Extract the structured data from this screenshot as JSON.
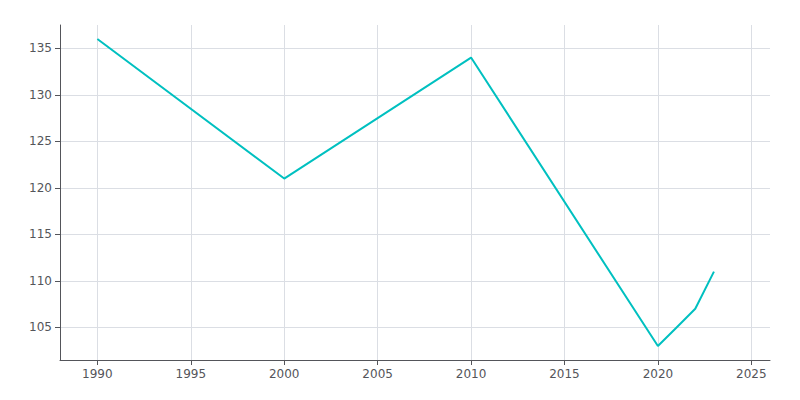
{
  "chart_data": {
    "type": "line",
    "x": [
      1990,
      2000,
      2010,
      2020,
      2021,
      2022,
      2023
    ],
    "values": [
      136,
      121,
      134,
      103,
      105,
      107,
      111
    ],
    "color": "#00c0c0",
    "xlim": [
      1988,
      2026
    ],
    "ylim": [
      101.5,
      137.5
    ],
    "xticks": [
      1990,
      1995,
      2000,
      2005,
      2010,
      2015,
      2020,
      2025
    ],
    "yticks": [
      105,
      110,
      115,
      120,
      125,
      130,
      135
    ],
    "grid": true
  }
}
